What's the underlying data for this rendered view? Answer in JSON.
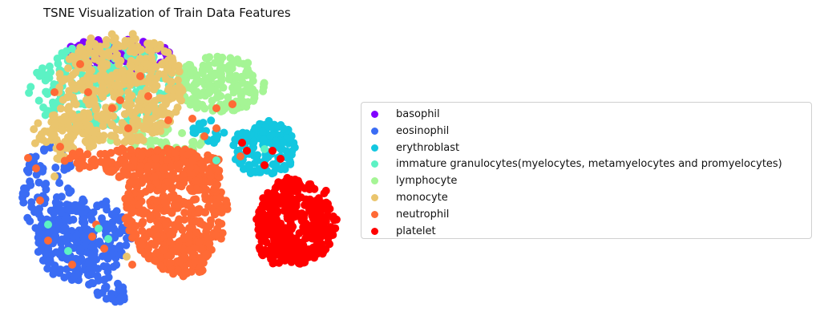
{
  "chart_data": {
    "type": "scatter",
    "title": "TSNE Visualization of Train Data Features",
    "axes_visible": false,
    "legend_position": "right",
    "series": [
      {
        "name": "basophil",
        "color": "#8000ff"
      },
      {
        "name": "eosinophil",
        "color": "#3a6cf4"
      },
      {
        "name": "erythroblast",
        "color": "#13c7e0"
      },
      {
        "name": "immature granulocytes(myelocytes, metamyelocytes and promyelocytes)",
        "color": "#5cf2c4"
      },
      {
        "name": "lymphocyte",
        "color": "#a5f595"
      },
      {
        "name": "monocyte",
        "color": "#eac56d"
      },
      {
        "name": "neutrophil",
        "color": "#ff6a35"
      },
      {
        "name": "platelet",
        "color": "#ff0000"
      }
    ]
  }
}
